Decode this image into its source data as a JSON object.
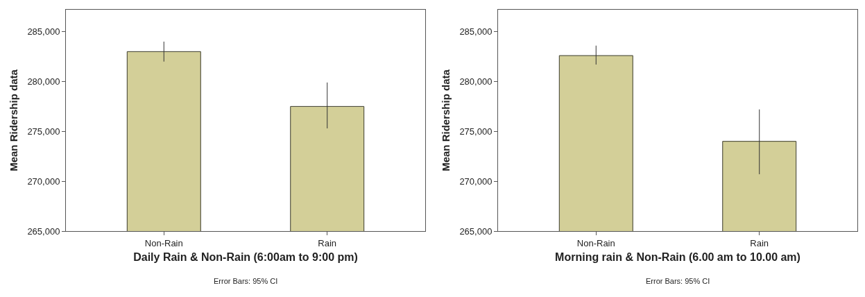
{
  "chart_data": [
    {
      "type": "bar",
      "categories": [
        "Non-Rain",
        "Rain"
      ],
      "values": [
        283000,
        277500
      ],
      "errors": [
        [
          282000,
          284000
        ],
        [
          275300,
          279900
        ]
      ],
      "color": "#d3cf98",
      "ylim": [
        265000,
        287200
      ],
      "yticks": [
        {
          "value": 265000,
          "label": "265,000"
        },
        {
          "value": 270000,
          "label": "270,000"
        },
        {
          "value": 275000,
          "label": "275,000"
        },
        {
          "value": 280000,
          "label": "280,000"
        },
        {
          "value": 285000,
          "label": "285,000"
        }
      ],
      "xlabel": "Daily Rain & Non-Rain (6:00am to 9:00 pm)",
      "ylabel": "Mean Ridership data",
      "annotations": [
        "Error Bars: 95% CI"
      ],
      "grid": false,
      "legend": false
    },
    {
      "type": "bar",
      "categories": [
        "Non-Rain",
        "Rain"
      ],
      "values": [
        282600,
        274000
      ],
      "errors": [
        [
          281700,
          283600
        ],
        [
          270700,
          277200
        ]
      ],
      "color": "#d3cf98",
      "ylim": [
        265000,
        287200
      ],
      "yticks": [
        {
          "value": 265000,
          "label": "265,000"
        },
        {
          "value": 270000,
          "label": "270,000"
        },
        {
          "value": 275000,
          "label": "275,000"
        },
        {
          "value": 280000,
          "label": "280,000"
        },
        {
          "value": 285000,
          "label": "285,000"
        }
      ],
      "xlabel": "Morning rain & Non-Rain (6.00 am to 10.00 am)",
      "ylabel": "Mean Ridership data",
      "annotations": [
        "Error Bars: 95% CI"
      ],
      "grid": false,
      "legend": false
    }
  ]
}
